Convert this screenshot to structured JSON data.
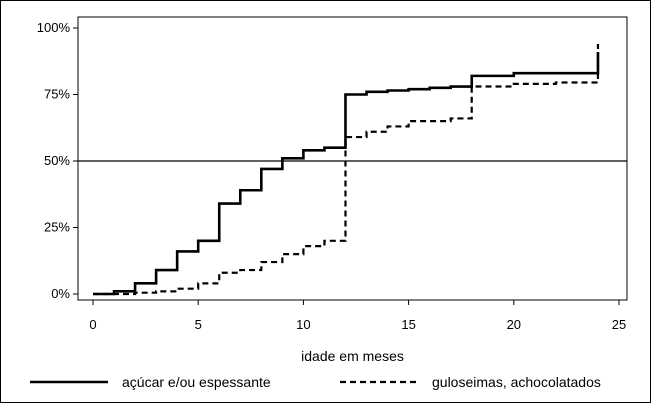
{
  "chart_data": {
    "type": "line",
    "title": "",
    "xlabel": "idade em meses",
    "ylabel": "",
    "xlim": [
      0,
      25
    ],
    "ylim": [
      0,
      100
    ],
    "x_ticks": [
      "0",
      "5",
      "10",
      "15",
      "20",
      "25"
    ],
    "y_ticks": [
      "0%",
      "25%",
      "50%",
      "75%",
      "100%"
    ],
    "reference_line": {
      "y": 50
    },
    "legend_position": "bottom",
    "series": [
      {
        "name": "açúcar e/ou espessante",
        "style": "solid",
        "step": true,
        "x": [
          0,
          1,
          2,
          3,
          4,
          5,
          6,
          7,
          8,
          9,
          10,
          11,
          12,
          13,
          14,
          15,
          16,
          17,
          18,
          19,
          20,
          21,
          22,
          23,
          24,
          24
        ],
        "y": [
          0,
          1,
          4,
          9,
          16,
          20,
          34,
          39,
          47,
          51,
          54,
          55,
          75,
          76,
          76.5,
          77,
          77.5,
          78,
          82,
          82,
          83,
          83,
          83,
          83,
          83,
          91
        ]
      },
      {
        "name": "guloseimas, achocolatados",
        "style": "dashed",
        "step": true,
        "x": [
          0,
          1,
          2,
          3,
          4,
          5,
          6,
          7,
          8,
          9,
          10,
          11,
          12,
          13,
          14,
          15,
          16,
          17,
          18,
          19,
          20,
          21,
          22,
          23,
          24,
          24
        ],
        "y": [
          0,
          0,
          0.5,
          1,
          2,
          4,
          8,
          9,
          12,
          15,
          18,
          20,
          59,
          61,
          63,
          65,
          65,
          66,
          78,
          78,
          79,
          79,
          79.5,
          79.5,
          80,
          94
        ]
      }
    ]
  }
}
